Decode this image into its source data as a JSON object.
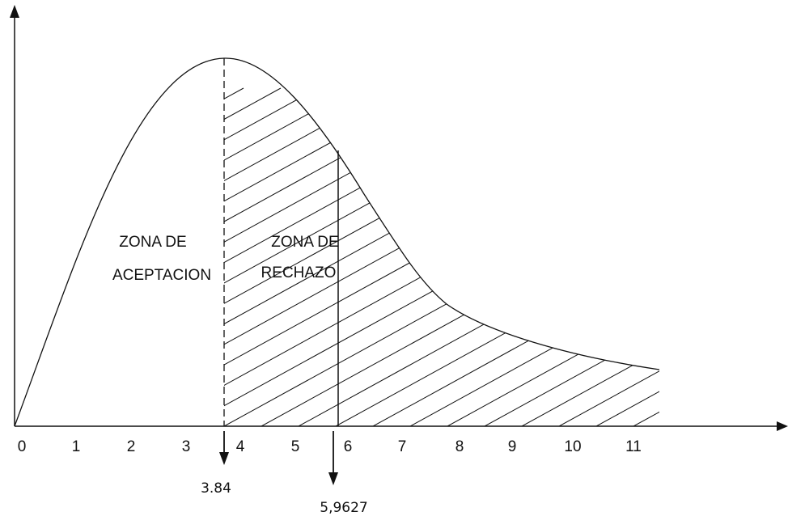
{
  "diagram": {
    "x_ticks": [
      "0",
      "1",
      "2",
      "3",
      "4",
      "5",
      "6",
      "7",
      "8",
      "9",
      "10",
      "11"
    ],
    "zones": {
      "acceptance": {
        "line1": "ZONA DE",
        "line2": "ACEPTACION"
      },
      "rejection": {
        "line1": "ZONA DE",
        "line2": "RECHAZO"
      }
    },
    "critical_value": {
      "label": "3.84",
      "x": 3.84
    },
    "test_statistic": {
      "label": "5,9627",
      "x": 5.9627
    },
    "colors": {
      "line": "#111111",
      "background": "#ffffff"
    }
  }
}
